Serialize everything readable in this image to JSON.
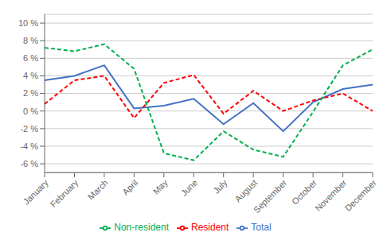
{
  "chart_data": {
    "type": "line",
    "categories": [
      "January",
      "February",
      "March",
      "April",
      "May",
      "June",
      "July",
      "August",
      "September",
      "October",
      "November",
      "December"
    ],
    "series": [
      {
        "name": "Total",
        "color": "#4472C4",
        "line_style": "solid",
        "values": [
          3.5,
          4.0,
          5.2,
          0.3,
          0.6,
          1.4,
          -1.5,
          0.9,
          -2.3,
          1.0,
          2.5,
          3.0
        ]
      },
      {
        "name": "Resident",
        "color": "#FF0000",
        "line_style": "dashed",
        "values": [
          0.8,
          3.5,
          4.0,
          -0.8,
          3.2,
          4.1,
          -0.3,
          2.3,
          0.0,
          1.2,
          2.0,
          0.0
        ]
      },
      {
        "name": "Non-resident",
        "color": "#00B050",
        "line_style": "dashed",
        "values": [
          7.2,
          6.8,
          7.6,
          4.8,
          -4.8,
          -5.6,
          -2.3,
          -4.4,
          -5.2,
          -0.1,
          5.2,
          7.0
        ]
      }
    ],
    "ylim": [
      -7,
      11
    ],
    "yticks": [
      {
        "value": -6,
        "label": "-6 %"
      },
      {
        "value": -4,
        "label": "-4 %"
      },
      {
        "value": -2,
        "label": "-2 %"
      },
      {
        "value": 0,
        "label": "0 %"
      },
      {
        "value": 2,
        "label": "2 %"
      },
      {
        "value": 4,
        "label": "4 %"
      },
      {
        "value": 6,
        "label": "6 %"
      },
      {
        "value": 8,
        "label": "8 %"
      },
      {
        "value": 10,
        "label": "10 %"
      }
    ],
    "grid": true,
    "legend": "bottom"
  }
}
